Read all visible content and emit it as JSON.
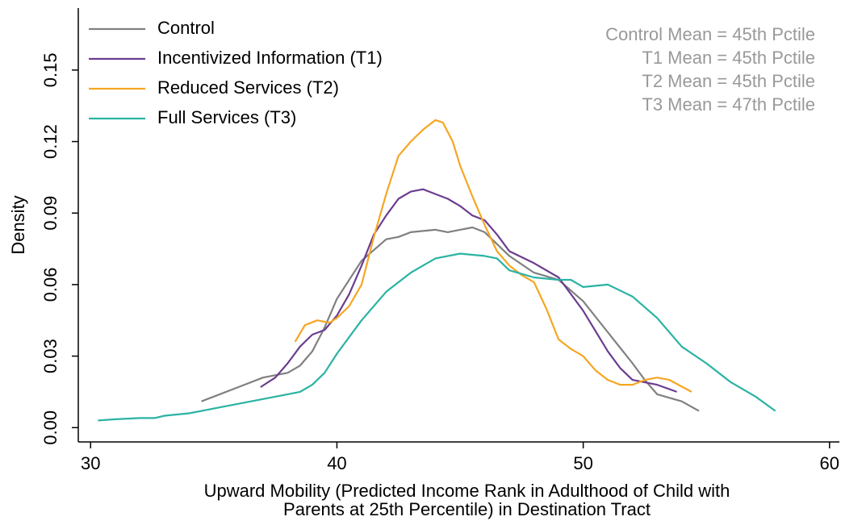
{
  "chart_data": {
    "type": "line",
    "ylabel": "Density",
    "xlabel": [
      "Upward Mobility (Predicted Income Rank in Adulthood of Child with",
      "Parents at 25th Percentile) in Destination Tract"
    ],
    "annotations": [
      "Control Mean = 45th Pctile",
      "T1 Mean = 45th Pctile",
      "T2 Mean = 45th Pctile",
      "T3 Mean = 47th Pctile"
    ],
    "xlim": [
      29.5,
      60.4
    ],
    "ylim": [
      -0.006,
      0.176
    ],
    "xticks": [
      30,
      40,
      50,
      60
    ],
    "yticks": [
      {
        "value": 0,
        "label": "0.00"
      },
      {
        "value": 0.03,
        "label": "0.03"
      },
      {
        "value": 0.06,
        "label": "0.06"
      },
      {
        "value": 0.09,
        "label": "0.09"
      },
      {
        "value": 0.12,
        "label": "0.12"
      },
      {
        "value": 0.15,
        "label": "0.15"
      }
    ],
    "grid": false,
    "legend": "upper left",
    "series": [
      {
        "name": "Control",
        "color": "#808080",
        "x": [
          34.5,
          35,
          36,
          37,
          38,
          38.5,
          39,
          39.5,
          40,
          41,
          42,
          42.5,
          43,
          44,
          44.5,
          45,
          45.5,
          46,
          47,
          48,
          49,
          50,
          51,
          52,
          52.5,
          53,
          54,
          54.7
        ],
        "values": [
          0.011,
          0.013,
          0.017,
          0.021,
          0.023,
          0.026,
          0.032,
          0.042,
          0.054,
          0.07,
          0.079,
          0.08,
          0.082,
          0.083,
          0.082,
          0.083,
          0.084,
          0.082,
          0.072,
          0.065,
          0.062,
          0.053,
          0.04,
          0.027,
          0.02,
          0.014,
          0.011,
          0.007
        ]
      },
      {
        "name": "Incentivized Information (T1)",
        "color": "#6b3d8f",
        "x": [
          36.9,
          37.5,
          38,
          38.5,
          39,
          39.5,
          40,
          40.5,
          41,
          41.5,
          42,
          42.5,
          43,
          43.5,
          44,
          44.5,
          45,
          45.5,
          46,
          46.5,
          47,
          48,
          49,
          50,
          51,
          51.5,
          52,
          53,
          53.8
        ],
        "values": [
          0.017,
          0.021,
          0.027,
          0.034,
          0.039,
          0.041,
          0.047,
          0.056,
          0.068,
          0.081,
          0.089,
          0.096,
          0.099,
          0.1,
          0.098,
          0.096,
          0.093,
          0.089,
          0.087,
          0.081,
          0.074,
          0.069,
          0.063,
          0.049,
          0.032,
          0.025,
          0.02,
          0.018,
          0.015
        ]
      },
      {
        "name": "Reduced Services (T2)",
        "color": "#f5a623",
        "x": [
          38.3,
          38.7,
          39.2,
          39.7,
          40,
          40.5,
          41,
          41.5,
          42,
          42.5,
          43,
          43.5,
          44,
          44.3,
          44.7,
          45,
          45.5,
          46,
          46.5,
          47,
          47.5,
          48,
          48.5,
          49,
          49.5,
          50,
          50.5,
          51,
          51.5,
          52,
          52.5,
          53,
          53.5,
          54.4
        ],
        "values": [
          0.036,
          0.043,
          0.045,
          0.044,
          0.046,
          0.051,
          0.06,
          0.08,
          0.098,
          0.114,
          0.12,
          0.125,
          0.129,
          0.128,
          0.12,
          0.11,
          0.097,
          0.085,
          0.074,
          0.068,
          0.064,
          0.061,
          0.05,
          0.037,
          0.033,
          0.03,
          0.024,
          0.02,
          0.018,
          0.018,
          0.02,
          0.021,
          0.02,
          0.015
        ]
      },
      {
        "name": "Full Services (T3)",
        "color": "#2ab3a3",
        "x": [
          30.3,
          31,
          32,
          32.6,
          33,
          34,
          35,
          36,
          37,
          38,
          38.5,
          39,
          39.5,
          40,
          41,
          42,
          43,
          44,
          45,
          46,
          46.5,
          47,
          48,
          49,
          49.5,
          50,
          51,
          52,
          53,
          54,
          55,
          56,
          57,
          57.8
        ],
        "values": [
          0.003,
          0.0035,
          0.004,
          0.004,
          0.005,
          0.006,
          0.008,
          0.01,
          0.012,
          0.014,
          0.015,
          0.018,
          0.023,
          0.031,
          0.045,
          0.057,
          0.065,
          0.071,
          0.073,
          0.072,
          0.071,
          0.066,
          0.063,
          0.062,
          0.062,
          0.059,
          0.06,
          0.055,
          0.046,
          0.034,
          0.027,
          0.019,
          0.013,
          0.007
        ]
      }
    ]
  }
}
